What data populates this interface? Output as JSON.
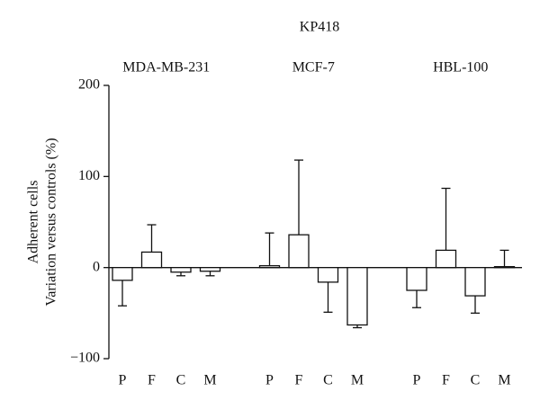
{
  "chart_data": {
    "type": "bar",
    "title": "KP418",
    "ylabel": [
      "Adherent cells",
      "Variation versus controls (%)"
    ],
    "ylim": [
      -100,
      200
    ],
    "yticks": [
      {
        "value": -100,
        "label": "−100"
      },
      0,
      100,
      200
    ],
    "color": "#ffffff",
    "groups": [
      {
        "name": "MDA-MB-231",
        "categories": [
          "P",
          "F",
          "C",
          "M"
        ],
        "values": [
          -14,
          17,
          -5,
          -4
        ],
        "errors": [
          28,
          30,
          4,
          5
        ]
      },
      {
        "name": "MCF-7",
        "categories": [
          "P",
          "F",
          "C",
          "M"
        ],
        "values": [
          2,
          36,
          -16,
          -63
        ],
        "errors": [
          36,
          82,
          33,
          3
        ]
      },
      {
        "name": "HBL-100",
        "categories": [
          "P",
          "F",
          "C",
          "M"
        ],
        "values": [
          -25,
          19,
          -31,
          1
        ],
        "errors": [
          19,
          68,
          19,
          18
        ]
      }
    ]
  }
}
